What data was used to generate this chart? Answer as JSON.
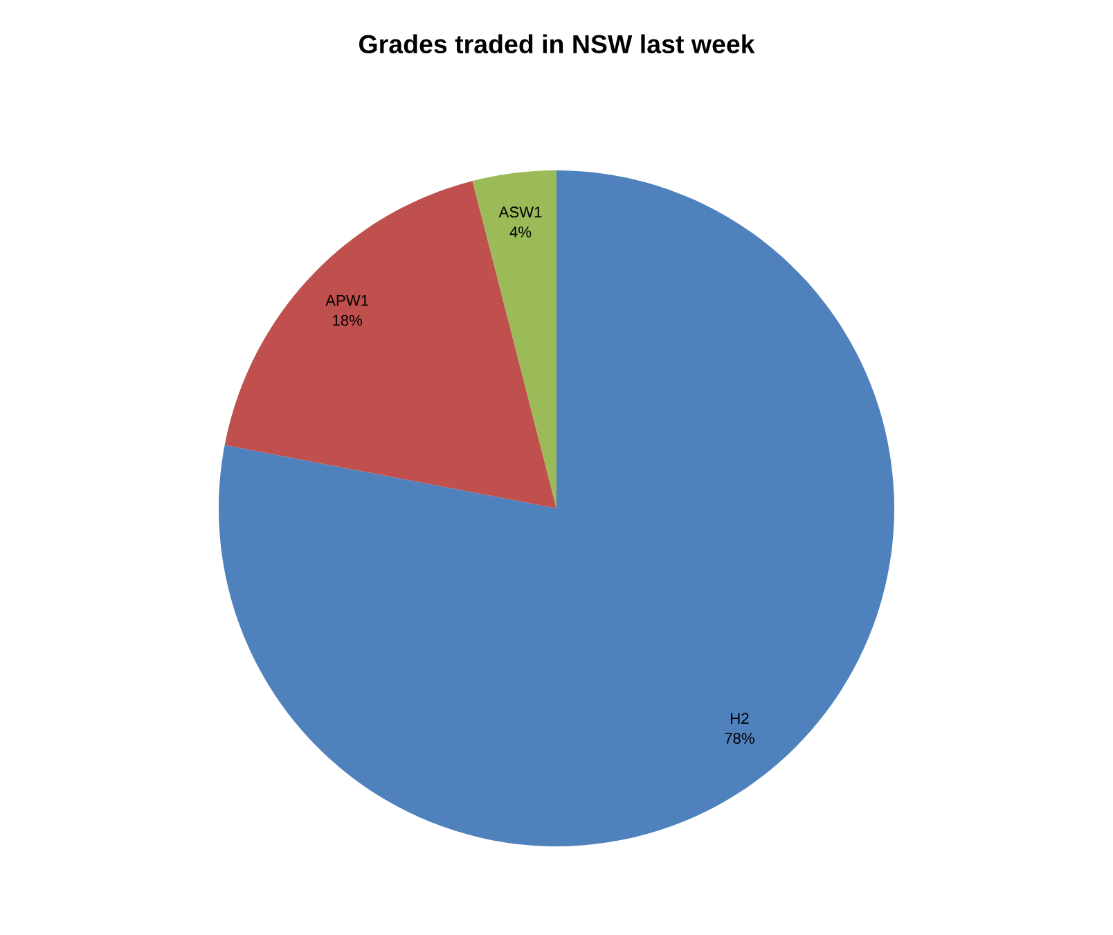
{
  "chart_data": {
    "type": "pie",
    "title": "Grades traded in NSW last week",
    "categories": [
      "H2",
      "APW1",
      "ASW1"
    ],
    "values": [
      78,
      18,
      4
    ],
    "colors": [
      "#4f81bd",
      "#c0504d",
      "#9bbb59"
    ],
    "value_labels": [
      "78%",
      "18%",
      "4%"
    ]
  }
}
